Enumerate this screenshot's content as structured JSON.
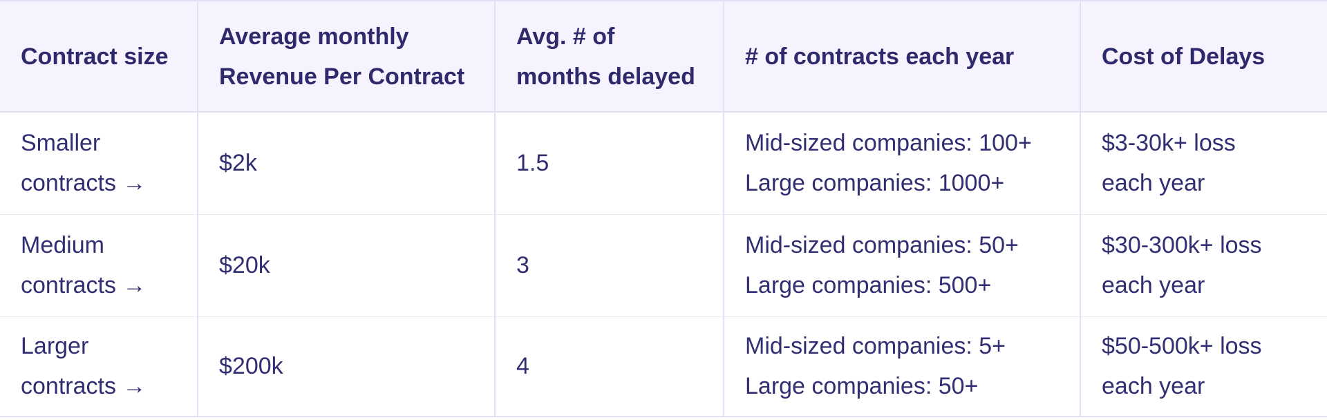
{
  "table": {
    "headers": [
      {
        "lines": [
          "Contract size"
        ]
      },
      {
        "lines": [
          "Average monthly",
          "Revenue Per Contract"
        ]
      },
      {
        "lines": [
          "Avg. # of",
          "months delayed"
        ]
      },
      {
        "lines": [
          "# of contracts each year"
        ]
      },
      {
        "lines": [
          "Cost of Delays"
        ]
      }
    ],
    "rows": [
      {
        "size": [
          "Smaller",
          "contracts →"
        ],
        "revenue": "$2k",
        "months": "1.5",
        "contracts": [
          "Mid-sized companies: 100+",
          "Large companies: 1000+"
        ],
        "cost": [
          "$3-30k+ loss",
          "each year"
        ]
      },
      {
        "size": [
          "Medium",
          "contracts →"
        ],
        "revenue": "$20k",
        "months": "3",
        "contracts": [
          "Mid-sized companies: 50+",
          "Large companies: 500+"
        ],
        "cost": [
          "$30-300k+ loss",
          "each year"
        ]
      },
      {
        "size": [
          "Larger",
          "contracts →"
        ],
        "revenue": "$200k",
        "months": "4",
        "contracts": [
          "Mid-sized companies: 5+",
          "Large companies: 50+"
        ],
        "cost": [
          "$50-500k+ loss",
          "each year"
        ]
      }
    ]
  }
}
